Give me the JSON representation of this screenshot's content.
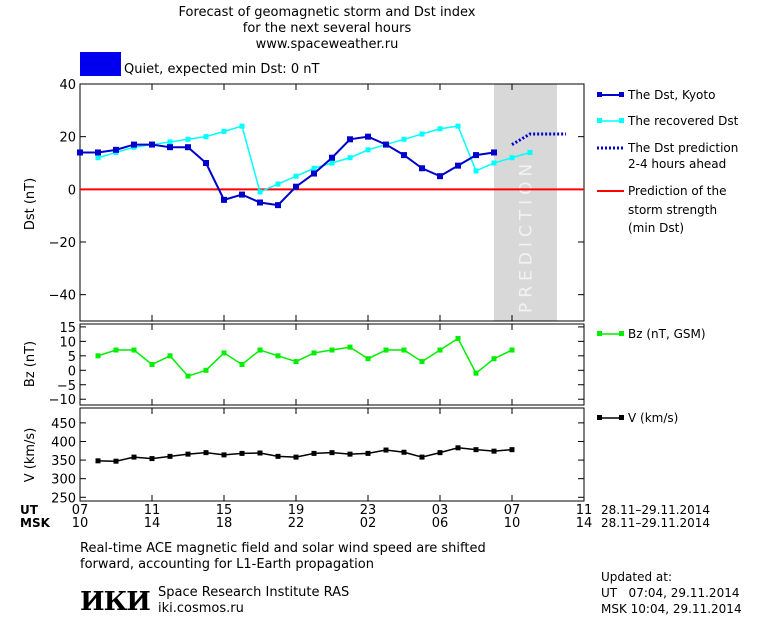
{
  "header": {
    "title_line1": "Forecast of geomagnetic storm and Dst index",
    "title_line2": "for the next several hours",
    "title_line3": "www.spaceweather.ru",
    "status_text": "Quiet, expected min Dst: 0 nT",
    "status_color": "#0000ee"
  },
  "legend": {
    "dst_kyoto": "The Dst, Kyoto",
    "dst_recovered": "The recovered Dst",
    "dst_prediction_1": "The Dst prediction",
    "dst_prediction_2": "2-4 hours ahead",
    "storm_1": "Prediction of the",
    "storm_2": "storm strength",
    "storm_3": "(min Dst)",
    "bz": "Bz (nT, GSM)",
    "v": "V (km/s)"
  },
  "prediction_label": "PREDICTION",
  "time_axis": {
    "ut_label": "UT",
    "msk_label": "MSK",
    "ut_ticks": [
      "07",
      "11",
      "15",
      "19",
      "23",
      "03",
      "07",
      "11"
    ],
    "msk_ticks": [
      "10",
      "14",
      "18",
      "22",
      "02",
      "06",
      "10",
      "14"
    ],
    "ut_range": "28.11–29.11.2014",
    "msk_range": "28.11–29.11.2014"
  },
  "footer": {
    "note_line1": "Real-time ACE magnetic field and solar wind speed are shifted",
    "note_line2": "forward, accounting for L1-Earth propagation",
    "institute": "Space Research Institute RAS",
    "website": "iki.cosmos.ru",
    "logo_text": "ИКИ",
    "updated_label": "Updated at:",
    "updated_ut": "UT   07:04, 29.11.2014",
    "updated_msk": "MSK 10:04, 29.11.2014"
  },
  "colors": {
    "dst_kyoto": "#0000cc",
    "dst_recovered": "#00ffff",
    "dst_prediction": "#0000cc",
    "storm_line": "#ff0000",
    "bz": "#00ee00",
    "v": "#000000",
    "prediction_bg": "#d8d8d8"
  },
  "chart_data": [
    {
      "type": "line",
      "ylabel": "Dst (nT)",
      "xlim": [
        7,
        35
      ],
      "ylim": [
        -50,
        40
      ],
      "yticks": [
        -40,
        -20,
        0,
        20,
        40
      ],
      "prediction_region": [
        30,
        33.5
      ],
      "series": [
        {
          "name": "The Dst, Kyoto",
          "x": [
            7,
            8,
            9,
            10,
            11,
            12,
            13,
            14,
            15,
            16,
            17,
            18,
            19,
            20,
            21,
            22,
            23,
            24,
            25,
            26,
            27,
            28,
            29,
            30
          ],
          "y": [
            14,
            14,
            15,
            17,
            17,
            16,
            16,
            10,
            -4,
            -2,
            -5,
            -6,
            1,
            6,
            12,
            19,
            20,
            17,
            13,
            8,
            5,
            9,
            13,
            14
          ]
        },
        {
          "name": "The recovered Dst",
          "x": [
            8,
            9,
            10,
            11,
            12,
            13,
            14,
            15,
            16,
            17,
            18,
            19,
            20,
            21,
            22,
            23,
            24,
            25,
            26,
            27,
            28,
            29,
            30,
            31,
            32
          ],
          "y": [
            12,
            14,
            16,
            17,
            18,
            19,
            20,
            22,
            24,
            -1,
            2,
            5,
            8,
            10,
            12,
            15,
            17,
            19,
            21,
            23,
            24,
            7,
            10,
            12,
            14
          ]
        },
        {
          "name": "The Dst prediction 2-4 hours ahead",
          "x": [
            31,
            32,
            33,
            34
          ],
          "y": [
            17,
            21,
            21,
            21
          ]
        },
        {
          "name": "Prediction of the storm strength (min Dst)",
          "x": [
            7,
            35
          ],
          "y": [
            0,
            0
          ]
        }
      ]
    },
    {
      "type": "line",
      "ylabel": "Bz (nT)",
      "xlim": [
        7,
        35
      ],
      "ylim": [
        -12,
        16
      ],
      "yticks": [
        -10,
        -5,
        0,
        5,
        10,
        15
      ],
      "series": [
        {
          "name": "Bz (nT, GSM)",
          "x": [
            8,
            9,
            10,
            11,
            12,
            13,
            14,
            15,
            16,
            17,
            18,
            19,
            20,
            21,
            22,
            23,
            24,
            25,
            26,
            27,
            28,
            29,
            30,
            31
          ],
          "y": [
            5,
            7,
            7,
            2,
            5,
            -2,
            0,
            6,
            2,
            7,
            5,
            3,
            6,
            7,
            8,
            4,
            7,
            7,
            3,
            7,
            11,
            -1,
            4,
            7
          ]
        }
      ]
    },
    {
      "type": "line",
      "ylabel": "V (km/s)",
      "xlim": [
        7,
        35
      ],
      "ylim": [
        240,
        490
      ],
      "yticks": [
        250,
        300,
        350,
        400,
        450
      ],
      "series": [
        {
          "name": "V (km/s)",
          "x": [
            8,
            9,
            10,
            11,
            12,
            13,
            14,
            15,
            16,
            17,
            18,
            19,
            20,
            21,
            22,
            23,
            24,
            25,
            26,
            27,
            28,
            29,
            30,
            31
          ],
          "y": [
            348,
            347,
            358,
            354,
            360,
            366,
            370,
            364,
            368,
            369,
            360,
            358,
            368,
            370,
            366,
            368,
            377,
            371,
            358,
            370,
            383,
            378,
            374,
            378
          ]
        }
      ]
    }
  ]
}
